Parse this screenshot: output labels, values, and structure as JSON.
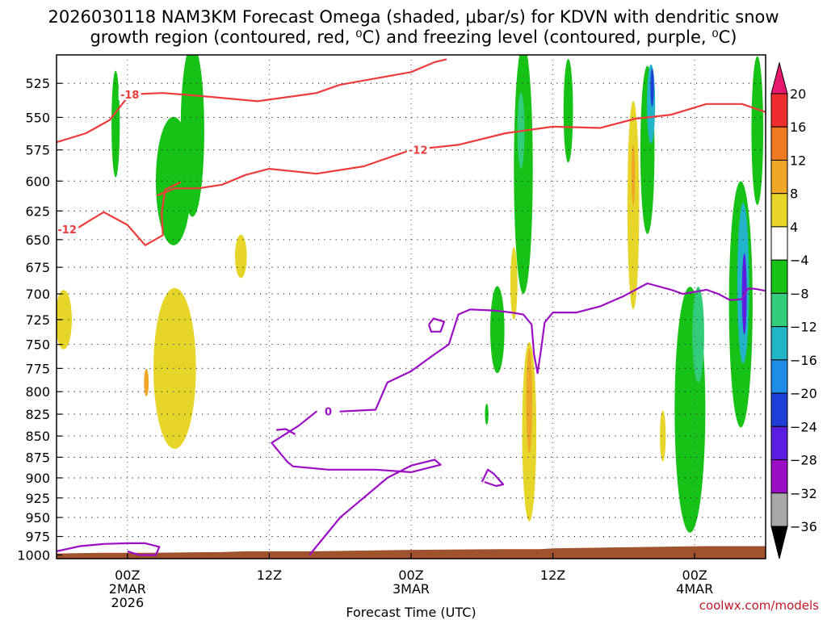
{
  "chart_data": {
    "type": "heatmap",
    "title_line1": "2026030118 NAM3KM Forecast Omega (shaded, μbar/s) for KDVN with dendritic snow",
    "title_line2": "growth region (contoured, red, ⁰C) and freezing level (contoured, purple, ⁰C)",
    "xlabel": "Forecast Time (UTC)",
    "x_ticks": [
      {
        "t": 6,
        "label1": "00Z",
        "label2": "2MAR",
        "label3": "2026"
      },
      {
        "t": 18,
        "label1": "12Z"
      },
      {
        "t": 30,
        "label1": "00Z",
        "label2": "3MAR"
      },
      {
        "t": 42,
        "label1": "12Z"
      },
      {
        "t": 54,
        "label1": "00Z",
        "label2": "4MAR"
      }
    ],
    "xlim_hours": [
      0,
      60
    ],
    "y_ticks": [
      "525",
      "550",
      "575",
      "600",
      "625",
      "650",
      "675",
      "700",
      "725",
      "750",
      "775",
      "800",
      "825",
      "850",
      "875",
      "900",
      "925",
      "950",
      "975",
      "1000"
    ],
    "ylim_hpa": [
      505,
      1005
    ],
    "colorbar": {
      "labels": [
        "20",
        "16",
        "12",
        "8",
        "4",
        "−4",
        "−8",
        "−12",
        "−16",
        "−20",
        "−24",
        "−28",
        "−32",
        "−36"
      ],
      "colors": [
        "#e8176f",
        "#ee2d2d",
        "#f07a22",
        "#f0a626",
        "#e6d62a",
        "#ffffff",
        "#17c217",
        "#33cc7a",
        "#22b5c8",
        "#1f8de8",
        "#1d3fd8",
        "#5b1ee0",
        "#9b0ec4",
        "#a8a8a8",
        "#000000"
      ]
    },
    "omega_fields": [
      {
        "value": -8,
        "color": "#17c217",
        "t": 9.9,
        "p": 600,
        "dt": 1.5,
        "dp": 55
      },
      {
        "value": -8,
        "color": "#17c217",
        "t": 11.5,
        "p": 560,
        "dt": 1.0,
        "dp": 70
      },
      {
        "value": -8,
        "color": "#17c217",
        "t": 5.0,
        "p": 555,
        "dt": 0.35,
        "dp": 42
      },
      {
        "value": 4,
        "color": "#e6d62a",
        "t": 10.0,
        "p": 775,
        "dt": 1.8,
        "dp": 90
      },
      {
        "value": 4,
        "color": "#e6d62a",
        "t": 0.6,
        "p": 725,
        "dt": 0.7,
        "dp": 30
      },
      {
        "value": 4,
        "color": "#e6d62a",
        "t": 15.6,
        "p": 665,
        "dt": 0.5,
        "dp": 20
      },
      {
        "value": 12,
        "color": "#f0a626",
        "t": 7.6,
        "p": 790,
        "dt": 0.2,
        "dp": 15
      },
      {
        "value": -8,
        "color": "#17c217",
        "t": 39.5,
        "p": 590,
        "dt": 0.8,
        "dp": 110
      },
      {
        "value": -12,
        "color": "#33cc7a",
        "t": 39.3,
        "p": 560,
        "dt": 0.3,
        "dp": 30
      },
      {
        "value": -8,
        "color": "#17c217",
        "t": 37.3,
        "p": 735,
        "dt": 0.6,
        "dp": 45
      },
      {
        "value": 4,
        "color": "#e6d62a",
        "t": 40.0,
        "p": 845,
        "dt": 0.6,
        "dp": 110
      },
      {
        "value": 12,
        "color": "#f0a626",
        "t": 40.0,
        "p": 810,
        "dt": 0.25,
        "dp": 60
      },
      {
        "value": 4,
        "color": "#e6d62a",
        "t": 38.7,
        "p": 690,
        "dt": 0.3,
        "dp": 35
      },
      {
        "value": -8,
        "color": "#17c217",
        "t": 43.3,
        "p": 545,
        "dt": 0.4,
        "dp": 40
      },
      {
        "value": 4,
        "color": "#e6d62a",
        "t": 48.8,
        "p": 620,
        "dt": 0.5,
        "dp": 95
      },
      {
        "value": 8,
        "color": "#f0a626",
        "t": 48.8,
        "p": 595,
        "dt": 0.15,
        "dp": 25
      },
      {
        "value": -8,
        "color": "#17c217",
        "t": 50.0,
        "p": 575,
        "dt": 0.6,
        "dp": 70
      },
      {
        "value": -16,
        "color": "#22b5c8",
        "t": 50.3,
        "p": 540,
        "dt": 0.35,
        "dp": 30
      },
      {
        "value": -20,
        "color": "#1d3fd8",
        "t": 50.4,
        "p": 528,
        "dt": 0.15,
        "dp": 14
      },
      {
        "value": -8,
        "color": "#17c217",
        "t": 53.6,
        "p": 820,
        "dt": 1.3,
        "dp": 150
      },
      {
        "value": -12,
        "color": "#33cc7a",
        "t": 54.3,
        "p": 740,
        "dt": 0.5,
        "dp": 50
      },
      {
        "value": -8,
        "color": "#17c217",
        "t": 57.9,
        "p": 710,
        "dt": 1.0,
        "dp": 130
      },
      {
        "value": -16,
        "color": "#22b5c8",
        "t": 58.1,
        "p": 690,
        "dt": 0.5,
        "dp": 80
      },
      {
        "value": -24,
        "color": "#5b1ee0",
        "t": 58.2,
        "p": 700,
        "dt": 0.2,
        "dp": 40
      },
      {
        "value": -8,
        "color": "#17c217",
        "t": 59.3,
        "p": 560,
        "dt": 0.5,
        "dp": 60
      },
      {
        "value": 4,
        "color": "#e6d62a",
        "t": 51.3,
        "p": 850,
        "dt": 0.25,
        "dp": 30
      },
      {
        "value": -8,
        "color": "#17c217",
        "t": 36.4,
        "p": 825,
        "dt": 0.15,
        "dp": 12
      }
    ],
    "contours": [
      {
        "name": "dgz-18",
        "color": "#ee3b3b",
        "label": "-18",
        "label_at": [
          6.2,
          533
        ],
        "points": [
          [
            0,
            569
          ],
          [
            2.5,
            562
          ],
          [
            4.5,
            552
          ],
          [
            6.2,
            533
          ],
          [
            9,
            532
          ],
          [
            12,
            534
          ],
          [
            17,
            538
          ],
          [
            22,
            532
          ],
          [
            24,
            526
          ],
          [
            30,
            517
          ],
          [
            32,
            510
          ],
          [
            33,
            508
          ]
        ]
      },
      {
        "name": "dgz-12-upper",
        "color": "#ee3b3b",
        "label": "-12",
        "label_at": [
          30.6,
          575
        ],
        "points": [
          [
            8.5,
            612
          ],
          [
            10,
            606
          ],
          [
            12,
            606
          ],
          [
            14,
            603
          ],
          [
            16,
            595
          ],
          [
            18,
            590
          ],
          [
            22,
            594
          ],
          [
            26,
            588
          ],
          [
            30,
            575
          ],
          [
            34,
            571
          ],
          [
            38,
            562
          ],
          [
            42,
            557
          ],
          [
            46,
            558
          ],
          [
            49,
            551
          ],
          [
            52,
            548
          ],
          [
            55,
            540
          ],
          [
            58,
            540
          ],
          [
            60,
            546
          ]
        ]
      },
      {
        "name": "dgz-12-lower",
        "color": "#ee3b3b",
        "label": "-12",
        "label_at": [
          0.9,
          641
        ],
        "points": [
          [
            0,
            643
          ],
          [
            1.6,
            641
          ],
          [
            3,
            632
          ],
          [
            4,
            626
          ],
          [
            6,
            637
          ],
          [
            7.5,
            655
          ],
          [
            9,
            646
          ],
          [
            8.9,
            627
          ],
          [
            9.2,
            607
          ],
          [
            10.5,
            601
          ]
        ]
      },
      {
        "name": "frz-0-main",
        "color": "#9b0ec4",
        "label": "0",
        "label_at": [
          23.0,
          822
        ],
        "points": [
          [
            21.4,
            1000
          ],
          [
            24,
            950
          ],
          [
            28,
            900
          ],
          [
            30,
            885
          ],
          [
            32,
            878
          ],
          [
            32.5,
            884
          ],
          [
            30,
            893
          ],
          [
            27,
            890
          ],
          [
            23,
            890
          ],
          [
            20,
            886
          ],
          [
            19.5,
            880
          ],
          [
            18.2,
            858
          ],
          [
            20.5,
            838
          ],
          [
            22,
            822
          ],
          [
            24,
            822
          ],
          [
            27,
            820
          ],
          [
            28,
            790
          ],
          [
            30,
            778
          ],
          [
            32,
            760
          ],
          [
            33.2,
            750
          ],
          [
            34,
            720
          ],
          [
            35,
            715
          ],
          [
            37,
            716
          ],
          [
            38.5,
            718
          ],
          [
            39.5,
            720
          ],
          [
            40.2,
            730
          ],
          [
            40.4,
            760
          ],
          [
            40.7,
            780
          ],
          [
            41,
            755
          ],
          [
            41.3,
            728
          ],
          [
            42,
            718
          ],
          [
            44,
            718
          ],
          [
            46,
            712
          ],
          [
            48,
            702
          ],
          [
            50,
            690
          ],
          [
            52,
            696
          ],
          [
            53,
            700
          ],
          [
            54,
            698
          ],
          [
            55,
            696
          ],
          [
            56,
            700
          ],
          [
            57,
            706
          ],
          [
            58,
            705
          ],
          [
            58.5,
            695
          ],
          [
            59,
            695
          ],
          [
            60,
            697
          ]
        ]
      },
      {
        "name": "frz-0-ring",
        "color": "#9b0ec4",
        "points": [
          [
            31.5,
            730
          ],
          [
            31.9,
            724
          ],
          [
            32.8,
            727
          ],
          [
            32.5,
            737
          ],
          [
            31.7,
            737
          ],
          [
            31.5,
            730
          ]
        ]
      },
      {
        "name": "frz-0-ring2",
        "color": "#9b0ec4",
        "points": [
          [
            36.0,
            905
          ],
          [
            36.5,
            890
          ],
          [
            37,
            895
          ],
          [
            37.8,
            908
          ],
          [
            37.2,
            910
          ],
          [
            36.2,
            905
          ]
        ]
      },
      {
        "name": "frz-0-sfc",
        "color": "#9b0ec4",
        "points": [
          [
            0,
            995
          ],
          [
            2,
            988
          ],
          [
            4,
            985
          ],
          [
            6,
            984
          ],
          [
            7.5,
            984
          ],
          [
            8.7,
            989
          ],
          [
            8.4,
            1000
          ],
          [
            7,
            1000
          ],
          [
            6,
            995
          ]
        ]
      },
      {
        "name": "frz-0-hook",
        "color": "#9b0ec4",
        "points": [
          [
            18.6,
            843
          ],
          [
            19.4,
            842
          ],
          [
            20.2,
            848
          ]
        ]
      }
    ],
    "terrain": {
      "color": "#a0522d",
      "levels": [
        [
          0,
          998
        ],
        [
          4,
          997
        ],
        [
          8,
          997
        ],
        [
          14,
          996
        ],
        [
          16,
          995
        ],
        [
          22,
          995
        ],
        [
          26,
          994
        ],
        [
          30,
          993
        ],
        [
          38,
          992
        ],
        [
          41,
          992
        ],
        [
          42,
          991
        ],
        [
          46,
          990
        ],
        [
          50,
          989
        ],
        [
          55,
          988
        ],
        [
          60,
          988
        ]
      ]
    },
    "credit": "coolwx.com/models"
  }
}
